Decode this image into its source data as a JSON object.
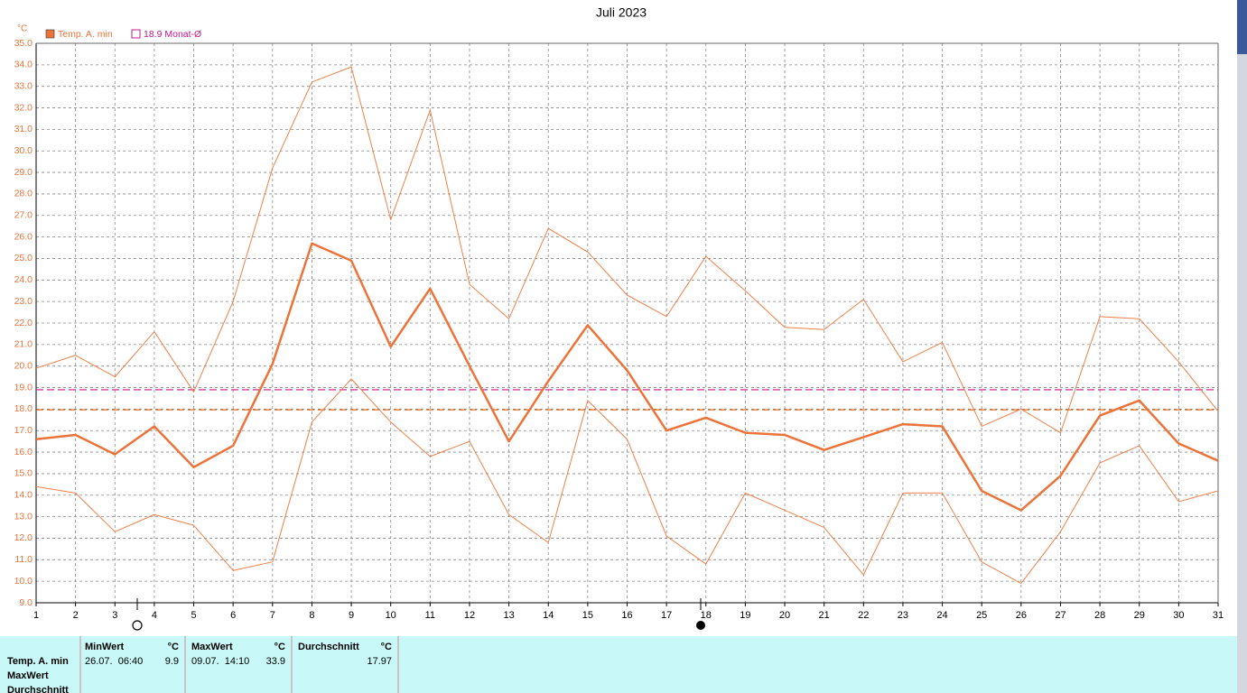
{
  "chart_data": {
    "type": "line",
    "title": "Juli 2023",
    "y_unit": "°C",
    "x": [
      1,
      2,
      3,
      4,
      5,
      6,
      7,
      8,
      9,
      10,
      11,
      12,
      13,
      14,
      15,
      16,
      17,
      18,
      19,
      20,
      21,
      22,
      23,
      24,
      25,
      26,
      27,
      28,
      29,
      30,
      31
    ],
    "xlim": [
      1,
      31
    ],
    "xticks": [
      1,
      2,
      3,
      4,
      5,
      6,
      7,
      8,
      9,
      10,
      11,
      12,
      13,
      14,
      15,
      16,
      17,
      18,
      19,
      20,
      21,
      22,
      23,
      24,
      25,
      26,
      27,
      28,
      29,
      30,
      31
    ],
    "ylim": [
      9,
      35
    ],
    "yticks": [
      {
        "value": 9,
        "label": "9.0"
      },
      {
        "value": 10,
        "label": "10.0"
      },
      {
        "value": 11,
        "label": "11.0"
      },
      {
        "value": 12,
        "label": "12.0"
      },
      {
        "value": 13,
        "label": "13.0"
      },
      {
        "value": 14,
        "label": "14.0"
      },
      {
        "value": 15,
        "label": "15.0"
      },
      {
        "value": 16,
        "label": "16.0"
      },
      {
        "value": 17,
        "label": "17.0"
      },
      {
        "value": 18,
        "label": "18.0"
      },
      {
        "value": 19,
        "label": "19.0"
      },
      {
        "value": 20,
        "label": "20.0"
      },
      {
        "value": 21,
        "label": "21.0"
      },
      {
        "value": 22,
        "label": "22.0"
      },
      {
        "value": 23,
        "label": "23.0"
      },
      {
        "value": 24,
        "label": "24.0"
      },
      {
        "value": 25,
        "label": "25.0"
      },
      {
        "value": 26,
        "label": "26.0"
      },
      {
        "value": 27,
        "label": "27.0"
      },
      {
        "value": 28,
        "label": "28.0"
      },
      {
        "value": 29,
        "label": "29.0"
      },
      {
        "value": 30,
        "label": "30.0"
      },
      {
        "value": 31,
        "label": "31.0"
      },
      {
        "value": 32,
        "label": "32.0"
      },
      {
        "value": 33,
        "label": "33.0"
      },
      {
        "value": 34,
        "label": "34.0"
      },
      {
        "value": 35,
        "label": "35.0"
      }
    ],
    "grid": true,
    "series": [
      {
        "name": "Temp. A. min",
        "color": "#ec7339",
        "line_width": 2.5,
        "values": [
          16.6,
          16.8,
          15.9,
          17.2,
          15.3,
          16.3,
          20.1,
          25.7,
          24.9,
          20.9,
          23.6,
          20.0,
          16.5,
          19.3,
          21.9,
          19.8,
          17.0,
          17.6,
          16.9,
          16.8,
          16.1,
          16.7,
          17.3,
          17.2,
          14.2,
          13.3,
          14.9,
          17.7,
          18.4,
          16.4,
          15.6
        ]
      },
      {
        "color": "#f0804a",
        "line_width": 1,
        "values": [
          19.9,
          20.5,
          19.5,
          21.6,
          18.8,
          23.0,
          29.2,
          33.2,
          33.9,
          26.8,
          31.9,
          23.8,
          22.2,
          26.4,
          25.3,
          23.3,
          22.3,
          25.1,
          23.5,
          21.8,
          21.7,
          23.1,
          20.2,
          21.1,
          17.2,
          18.0,
          16.9,
          22.3,
          22.2,
          20.2,
          17.9
        ]
      },
      {
        "color": "#f0804a",
        "line_width": 1,
        "values": [
          14.4,
          14.1,
          12.3,
          13.1,
          12.6,
          10.5,
          10.9,
          17.4,
          19.4,
          17.4,
          15.8,
          16.5,
          13.1,
          11.8,
          18.4,
          16.6,
          12.1,
          10.8,
          14.1,
          13.3,
          12.5,
          10.3,
          14.1,
          14.1,
          10.9,
          9.9,
          12.3,
          15.5,
          16.3,
          13.7,
          14.2
        ]
      }
    ],
    "reference_lines": [
      {
        "value": 18.9,
        "color": "#c0188c",
        "label": "18.9 Monat-Ø"
      },
      {
        "value": 17.97,
        "color": "#e06a20"
      }
    ]
  },
  "table": {
    "row_labels": [
      "Temp. A. min",
      "MaxWert",
      "Durchschnitt"
    ],
    "columns": [
      {
        "header": "MinWert",
        "unit": "°C",
        "time": "26.07.  06:40",
        "value": 9.9
      },
      {
        "header": "MaxWert",
        "unit": "°C",
        "time": "09.07.  14:10",
        "value": 33.9
      },
      {
        "header": "Durchschnitt",
        "unit": "°C",
        "value": 17.97
      }
    ]
  }
}
